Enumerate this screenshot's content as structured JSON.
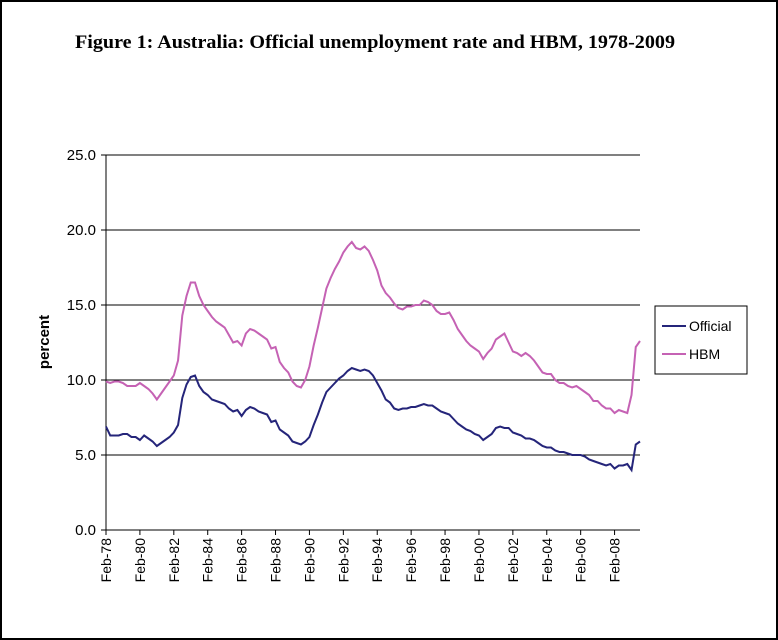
{
  "chart_data": {
    "type": "line",
    "title": "Figure 1: Australia: Official unemployment rate and HBM, 1978-2009",
    "y_label": "percent",
    "categories": [
      "Feb-78",
      null,
      null,
      null,
      null,
      null,
      null,
      null,
      "Feb-80",
      null,
      null,
      null,
      null,
      null,
      null,
      null,
      "Feb-82",
      null,
      null,
      null,
      null,
      null,
      null,
      null,
      "Feb-84",
      null,
      null,
      null,
      null,
      null,
      null,
      null,
      "Feb-86",
      null,
      null,
      null,
      null,
      null,
      null,
      null,
      "Feb-88",
      null,
      null,
      null,
      null,
      null,
      null,
      null,
      "Feb-90",
      null,
      null,
      null,
      null,
      null,
      null,
      null,
      "Feb-92",
      null,
      null,
      null,
      null,
      null,
      null,
      null,
      "Feb-94",
      null,
      null,
      null,
      null,
      null,
      null,
      null,
      "Feb-96",
      null,
      null,
      null,
      null,
      null,
      null,
      null,
      "Feb-98",
      null,
      null,
      null,
      null,
      null,
      null,
      null,
      "Feb-00",
      null,
      null,
      null,
      null,
      null,
      null,
      null,
      "Feb-02",
      null,
      null,
      null,
      null,
      null,
      null,
      null,
      "Feb-04",
      null,
      null,
      null,
      null,
      null,
      null,
      null,
      "Feb-06",
      null,
      null,
      null,
      null,
      null,
      null,
      null,
      "Feb-08",
      null,
      null,
      null,
      null,
      null,
      null
    ],
    "series": [
      {
        "name": "Official",
        "color": "#25257a",
        "values": [
          6.9,
          6.3,
          6.3,
          6.3,
          6.4,
          6.4,
          6.2,
          6.2,
          6.0,
          6.3,
          6.1,
          5.9,
          5.6,
          5.8,
          6.0,
          6.2,
          6.5,
          7.0,
          8.8,
          9.7,
          10.2,
          10.3,
          9.6,
          9.2,
          9.0,
          8.7,
          8.6,
          8.5,
          8.4,
          8.1,
          7.9,
          8.0,
          7.6,
          8.0,
          8.2,
          8.1,
          7.9,
          7.8,
          7.7,
          7.2,
          7.3,
          6.7,
          6.5,
          6.3,
          5.9,
          5.8,
          5.7,
          5.9,
          6.2,
          7.0,
          7.7,
          8.5,
          9.2,
          9.5,
          9.8,
          10.1,
          10.3,
          10.6,
          10.8,
          10.7,
          10.6,
          10.7,
          10.6,
          10.3,
          9.8,
          9.3,
          8.7,
          8.5,
          8.1,
          8.0,
          8.1,
          8.1,
          8.2,
          8.2,
          8.3,
          8.4,
          8.3,
          8.3,
          8.1,
          7.9,
          7.8,
          7.7,
          7.4,
          7.1,
          6.9,
          6.7,
          6.6,
          6.4,
          6.3,
          6.0,
          6.2,
          6.4,
          6.8,
          6.9,
          6.8,
          6.8,
          6.5,
          6.4,
          6.3,
          6.1,
          6.1,
          6.0,
          5.8,
          5.6,
          5.5,
          5.5,
          5.3,
          5.2,
          5.2,
          5.1,
          5.0,
          5.0,
          5.0,
          4.9,
          4.7,
          4.6,
          4.5,
          4.4,
          4.3,
          4.4,
          4.1,
          4.3,
          4.3,
          4.4,
          4.0,
          5.7,
          5.9
        ]
      },
      {
        "name": "HBM",
        "color": "#c562b4",
        "values": [
          9.9,
          9.8,
          9.9,
          9.9,
          9.8,
          9.6,
          9.6,
          9.6,
          9.8,
          9.6,
          9.4,
          9.1,
          8.7,
          9.1,
          9.5,
          9.9,
          10.3,
          11.3,
          14.3,
          15.6,
          16.5,
          16.5,
          15.6,
          15.0,
          14.6,
          14.2,
          13.9,
          13.7,
          13.5,
          13.0,
          12.5,
          12.6,
          12.3,
          13.1,
          13.4,
          13.3,
          13.1,
          12.9,
          12.7,
          12.1,
          12.2,
          11.2,
          10.8,
          10.5,
          9.9,
          9.6,
          9.5,
          10.0,
          10.9,
          12.3,
          13.5,
          14.8,
          16.1,
          16.8,
          17.4,
          17.9,
          18.5,
          18.9,
          19.2,
          18.8,
          18.7,
          18.9,
          18.6,
          18.0,
          17.3,
          16.3,
          15.8,
          15.5,
          15.1,
          14.8,
          14.7,
          14.9,
          14.9,
          15.0,
          15.0,
          15.3,
          15.2,
          15.0,
          14.6,
          14.4,
          14.4,
          14.5,
          14.0,
          13.4,
          13.0,
          12.6,
          12.3,
          12.1,
          11.9,
          11.4,
          11.8,
          12.1,
          12.7,
          12.9,
          13.1,
          12.5,
          11.9,
          11.8,
          11.6,
          11.8,
          11.6,
          11.3,
          10.9,
          10.5,
          10.4,
          10.4,
          10.0,
          9.8,
          9.8,
          9.6,
          9.5,
          9.6,
          9.4,
          9.2,
          9.0,
          8.6,
          8.6,
          8.3,
          8.1,
          8.1,
          7.8,
          8.0,
          7.9,
          7.8,
          9.0,
          12.2,
          12.6
        ]
      }
    ],
    "ylim": [
      0,
      25
    ],
    "yticks": [
      {
        "value": 0,
        "label": "0.0"
      },
      {
        "value": 5,
        "label": "5.0"
      },
      {
        "value": 10,
        "label": "10.0"
      },
      {
        "value": 15,
        "label": "15.0"
      },
      {
        "value": 20,
        "label": "20.0"
      },
      {
        "value": 25,
        "label": "25.0"
      }
    ],
    "grid": true,
    "legend": "right"
  }
}
